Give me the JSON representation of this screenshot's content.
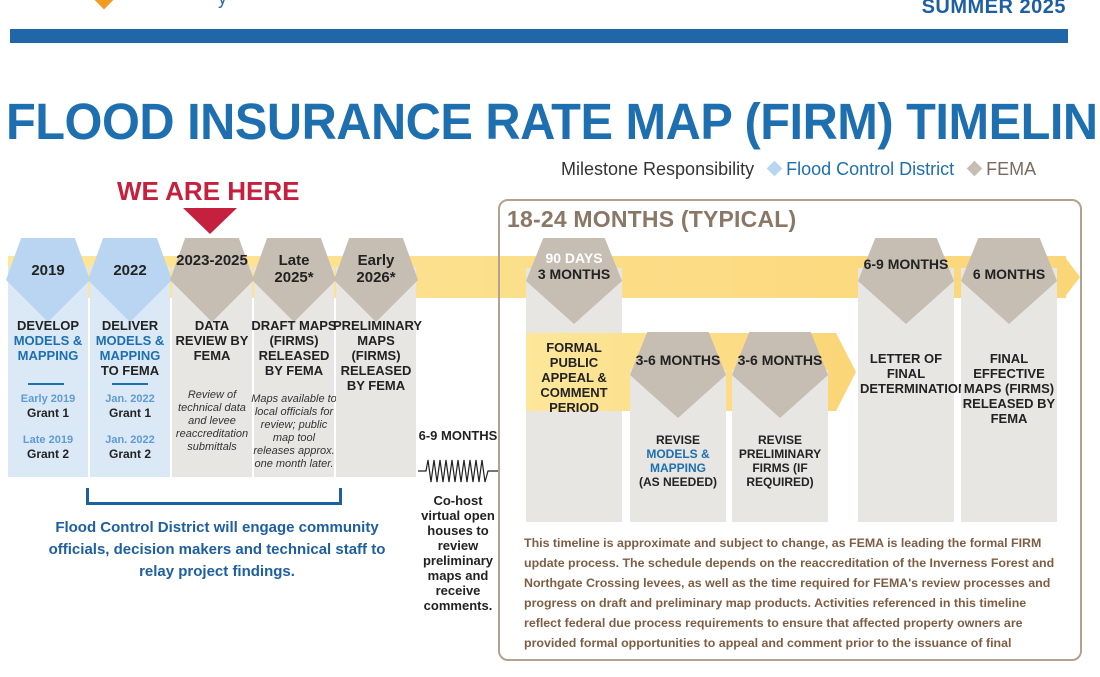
{
  "header": {
    "season": "SUMMER 2025",
    "logo_text_fragment": "y"
  },
  "title": "FLOOD INSURANCE RATE MAP (FIRM) TIMELINE",
  "legend": {
    "label": "Milestone Responsibility",
    "fcd": "Flood Control District",
    "fema": "FEMA",
    "fcd_color": "#b8d6f0",
    "fema_color": "#c7bdb2"
  },
  "we_are_here": "WE ARE HERE",
  "milestones": [
    {
      "date": "2019",
      "activity_pre": "DEVELOP",
      "activity_blue": "MODELS & MAPPING",
      "activity_post": "",
      "grants": [
        {
          "date": "Early 2019",
          "name": "Grant 1"
        },
        {
          "date": "Late 2019",
          "name": "Grant 2"
        }
      ]
    },
    {
      "date": "2022",
      "activity_pre": "DELIVER",
      "activity_blue": "MODELS & MAPPING",
      "activity_post": "TO FEMA",
      "grants": [
        {
          "date": "Jan. 2022",
          "name": "Grant 1"
        },
        {
          "date": "Jan. 2022",
          "name": "Grant 2"
        }
      ]
    },
    {
      "date": "2023-2025",
      "activity": "DATA REVIEW BY FEMA",
      "note": "Review of technical data and levee reaccreditation submittals"
    },
    {
      "date": "Late 2025*",
      "activity": "DRAFT MAPS (FIRMS) RELEASED BY FEMA",
      "note": "Maps available to local officials for review; public map tool releases approx. one month later."
    },
    {
      "date": "Early 2026*",
      "activity": "PRELIMINARY MAPS (FIRMS) RELEASED BY FEMA"
    }
  ],
  "fcd_engagement": "Flood Control District will engage community officials, decision makers and technical staff to relay project findings.",
  "open_houses": {
    "duration": "6-9 MONTHS",
    "activity": "Co-host virtual open houses to review preliminary maps and receive comments."
  },
  "typical": {
    "title": "18-24 MONTHS (TYPICAL)",
    "appeal": {
      "duration_top": "90 DAYS",
      "duration_bottom": "3 MONTHS",
      "activity": "FORMAL PUBLIC APPEAL & COMMENT PERIOD"
    },
    "revise_models": {
      "duration": "3-6 MONTHS",
      "activity_pre": "REVISE",
      "activity_blue": "MODELS & MAPPING",
      "activity_post": "(AS NEEDED)"
    },
    "revise_firms": {
      "duration": "3-6 MONTHS",
      "activity": "REVISE PRELIMINARY FIRMS (IF REQUIRED)"
    },
    "lfd": {
      "duration": "6-9 MONTHS",
      "activity": "LETTER OF FINAL DETERMINATION"
    },
    "final": {
      "duration": "6 MONTHS",
      "activity": "FINAL EFFECTIVE MAPS (FIRMS) RELEASED BY FEMA"
    },
    "disclaimer": "This timeline is approximate and subject to change, as FEMA is leading the formal FIRM update process. The schedule depends on the reaccreditation of the Inverness Forest and Northgate Crossing levees, as well as the time required for FEMA's review processes and progress on draft and preliminary map products. Activities referenced in this timeline reflect federal due process requirements to ensure that affected property owners are provided formal opportunities to appeal and comment prior to the issuance of final"
  }
}
